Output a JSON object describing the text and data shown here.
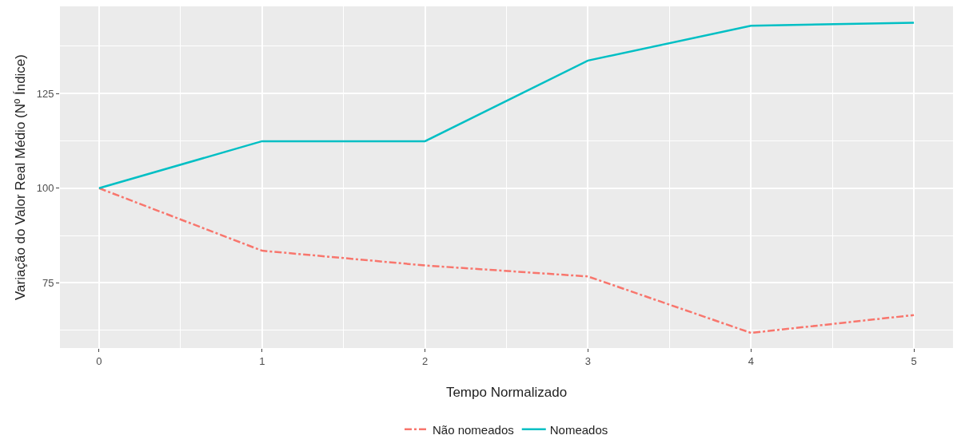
{
  "chart_data": {
    "type": "line",
    "xlabel": "Tempo Normalizado",
    "ylabel": "Variação do Valor Real Médio (Nº Índice)",
    "x": [
      0,
      1,
      2,
      3,
      4,
      5
    ],
    "series": [
      {
        "name": "Não nomeados",
        "color": "#f8766d",
        "line_style": "dashed",
        "values": [
          100,
          83.5,
          79.6,
          76.7,
          61.8,
          66.5
        ]
      },
      {
        "name": "Nomeados",
        "color": "#00bfc4",
        "line_style": "solid",
        "values": [
          100,
          112.4,
          112.4,
          133.7,
          142.9,
          143.7
        ]
      }
    ],
    "xlim": [
      -0.24,
      5.24
    ],
    "xticks": [
      0,
      1,
      2,
      3,
      4,
      5
    ],
    "ylim": [
      57.8,
      148
    ],
    "yticks": [
      75,
      100,
      125
    ],
    "grid": true,
    "legend": "bottom",
    "marker": "none"
  }
}
